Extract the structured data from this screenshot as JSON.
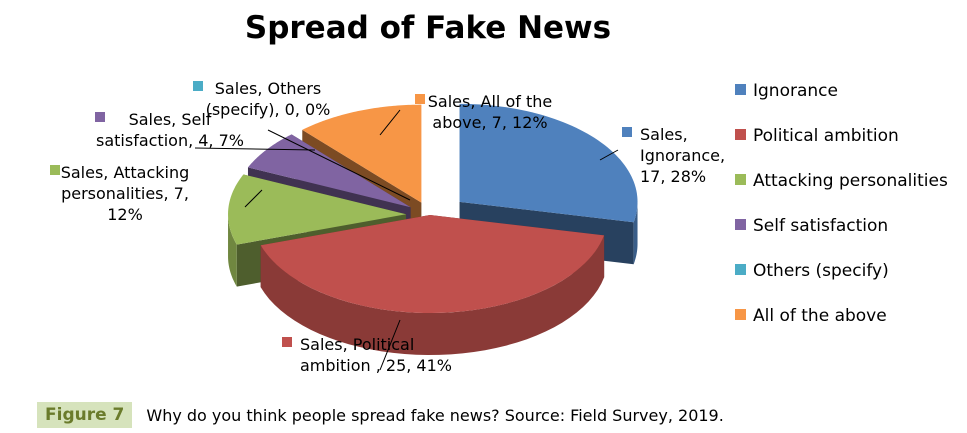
{
  "chart_data": {
    "type": "pie",
    "title": "Spread of Fake News",
    "series_name": "Sales",
    "slices": [
      {
        "label": "Ignorance",
        "value": 17,
        "percent": "28%",
        "color": "#4f81bd",
        "data_label": [
          "Sales,",
          "Ignorance,",
          "17, 28%"
        ]
      },
      {
        "label": "Political ambition",
        "value": 25,
        "percent": "41%",
        "color": "#c0504d",
        "data_label": [
          "Sales, Political",
          "ambition , 25, 41%"
        ]
      },
      {
        "label": "Attacking personalities",
        "value": 7,
        "percent": "12%",
        "color": "#9bbb59",
        "data_label": [
          "Sales, Attacking",
          "personalities, 7,",
          "12%"
        ]
      },
      {
        "label": "Self satisfaction",
        "value": 4,
        "percent": "7%",
        "color": "#8064a2",
        "data_label": [
          "Sales, Self",
          "satisfaction, 4, 7%"
        ]
      },
      {
        "label": "Others (specify)",
        "value": 0,
        "percent": "0%",
        "color": "#4bacc6",
        "data_label": [
          "Sales, Others",
          "(specify), 0, 0%"
        ]
      },
      {
        "label": "All of the above",
        "value": 7,
        "percent": "12%",
        "color": "#f79646",
        "data_label": [
          "Sales, All of the",
          "above, 7, 12%"
        ]
      }
    ],
    "legend_position": "right"
  },
  "caption": {
    "label": "Figure 7",
    "text": "Why do you think people spread fake news? Source: Field Survey, 2019."
  }
}
